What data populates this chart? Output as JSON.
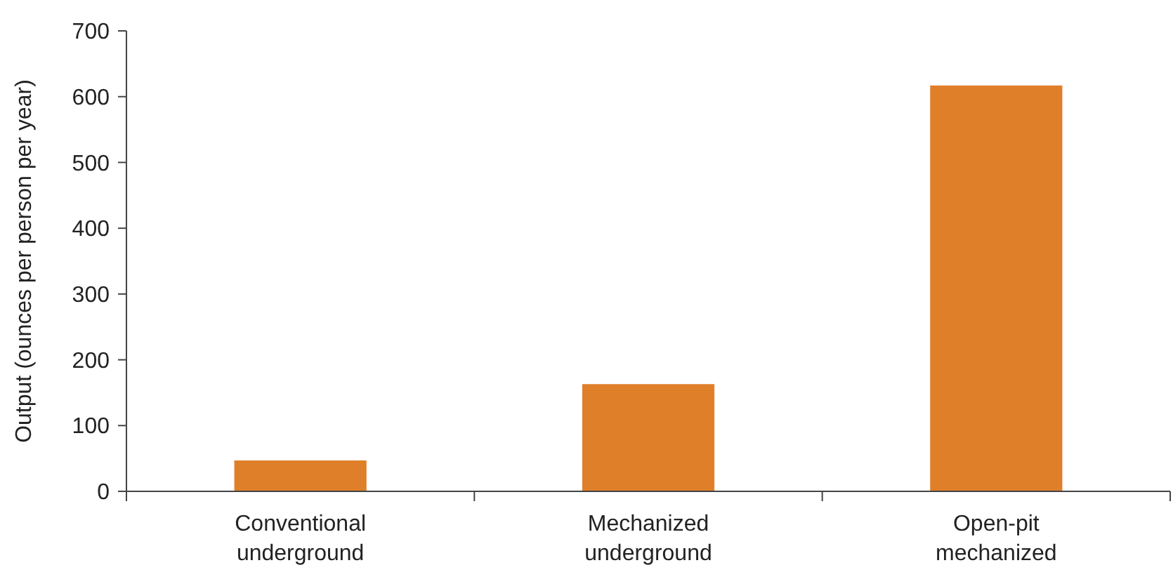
{
  "chart_data": {
    "type": "bar",
    "ylabel": "Output (ounces per person per year)",
    "categories": [
      "Conventional underground",
      "Mechanized underground",
      "Open-pit mechanized"
    ],
    "values": [
      47,
      163,
      617
    ],
    "color": "#e07f2a",
    "ylim": [
      0,
      700
    ],
    "yticks": [
      0,
      100,
      200,
      300,
      400,
      500,
      600,
      700
    ],
    "grid": false
  }
}
